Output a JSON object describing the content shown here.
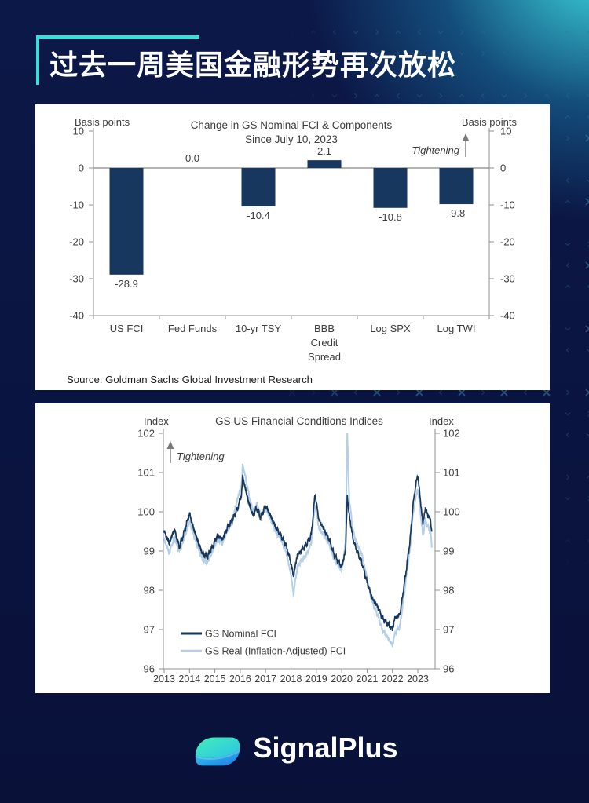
{
  "header": {
    "title": "过去一周美国金融形势再次放松"
  },
  "brand": {
    "name": "SignalPlus"
  },
  "colors": {
    "background": "#0a123c",
    "accent_teal": "#35e0d6",
    "bar": "#17375e",
    "line_nominal": "#16365c",
    "line_real": "#b5cfe8",
    "glow": "#40e4e8",
    "axis_gray": "#8f8f8f",
    "chart_text": "#3c3c3c"
  },
  "chart_data": [
    {
      "type": "bar",
      "title": "Change in GS Nominal FCI & Components",
      "subtitle": "Since July 10, 2023",
      "left_axis_label": "Basis points",
      "right_axis_label": "Basis points",
      "annotation": "Tightening",
      "categories": [
        "US FCI",
        "Fed Funds",
        "10-yr TSY",
        "BBB Credit Spread",
        "Log SPX",
        "Log TWI"
      ],
      "category_lines": [
        [
          "US FCI"
        ],
        [
          "Fed Funds"
        ],
        [
          "10-yr TSY"
        ],
        [
          "BBB",
          "Credit",
          "Spread"
        ],
        [
          "Log SPX"
        ],
        [
          "Log TWI"
        ]
      ],
      "values": [
        -28.9,
        0.0,
        -10.4,
        2.1,
        -10.8,
        -9.8
      ],
      "value_labels": [
        "-28.9",
        "0.0",
        "-10.4",
        "2.1",
        "-10.8",
        "-9.8"
      ],
      "ylim": [
        -40,
        10
      ],
      "yticks": [
        10,
        0,
        -10,
        -20,
        -30,
        -40
      ],
      "grid": false,
      "source": "Source: Goldman Sachs Global Investment Research"
    },
    {
      "type": "line",
      "title": "GS US Financial Conditions Indices",
      "left_axis_label": "Index",
      "right_axis_label": "Index",
      "annotation": "Tightening",
      "ylim": [
        96,
        102
      ],
      "yticks": [
        96,
        97,
        98,
        99,
        100,
        101,
        102
      ],
      "xticks": [
        2013,
        2014,
        2015,
        2016,
        2017,
        2018,
        2019,
        2020,
        2021,
        2022,
        2023
      ],
      "x_range": [
        2013.0,
        2023.55
      ],
      "grid": false,
      "legend_position": "inside-bottom-left",
      "legend": [
        {
          "name": "GS Nominal FCI",
          "color": "#16365c"
        },
        {
          "name": "GS Real (Inflation-Adjusted) FCI",
          "color": "#b5cfe8"
        }
      ],
      "x": [
        2013.0,
        2013.2,
        2013.4,
        2013.6,
        2013.8,
        2014.0,
        2014.15,
        2014.3,
        2014.5,
        2014.7,
        2014.9,
        2015.1,
        2015.3,
        2015.5,
        2015.7,
        2015.9,
        2016.05,
        2016.1,
        2016.2,
        2016.35,
        2016.5,
        2016.65,
        2016.8,
        2017.0,
        2017.2,
        2017.4,
        2017.6,
        2017.8,
        2018.0,
        2018.1,
        2018.25,
        2018.4,
        2018.6,
        2018.8,
        2018.95,
        2019.1,
        2019.3,
        2019.5,
        2019.7,
        2019.9,
        2020.0,
        2020.15,
        2020.22,
        2020.3,
        2020.45,
        2020.6,
        2020.8,
        2021.0,
        2021.2,
        2021.4,
        2021.6,
        2021.8,
        2022.0,
        2022.1,
        2022.3,
        2022.5,
        2022.7,
        2022.8,
        2022.9,
        2023.0,
        2023.1,
        2023.2,
        2023.3,
        2023.4,
        2023.5,
        2023.55
      ],
      "series": [
        {
          "name": "GS Nominal FCI",
          "color": "#16365c",
          "values": [
            99.5,
            99.2,
            99.55,
            99.1,
            99.5,
            99.95,
            99.6,
            99.3,
            98.95,
            98.85,
            99.1,
            99.4,
            99.3,
            99.6,
            99.8,
            100.1,
            100.45,
            100.9,
            100.6,
            100.2,
            99.9,
            100.1,
            99.85,
            100.15,
            99.9,
            99.6,
            99.4,
            99.15,
            98.7,
            98.35,
            98.9,
            99.0,
            99.15,
            99.4,
            100.45,
            99.8,
            99.55,
            99.3,
            98.9,
            98.7,
            98.6,
            99.0,
            100.4,
            99.9,
            99.3,
            99.0,
            98.7,
            98.2,
            97.8,
            97.6,
            97.3,
            97.15,
            97.0,
            97.3,
            97.4,
            98.3,
            99.3,
            100.1,
            100.6,
            100.95,
            100.3,
            99.7,
            100.1,
            99.9,
            99.8,
            99.5
          ]
        },
        {
          "name": "GS Real (Inflation-Adjusted) FCI",
          "color": "#b5cfe8",
          "values": [
            99.3,
            98.95,
            99.35,
            99.0,
            99.35,
            99.75,
            99.45,
            99.15,
            98.8,
            98.7,
            99.0,
            99.3,
            99.2,
            99.55,
            99.8,
            100.35,
            100.7,
            101.2,
            100.9,
            100.4,
            100.0,
            100.2,
            99.9,
            100.1,
            99.8,
            99.5,
            99.3,
            99.0,
            98.4,
            97.9,
            98.6,
            98.75,
            98.9,
            99.2,
            100.2,
            99.6,
            99.4,
            99.2,
            98.8,
            98.6,
            98.5,
            99.2,
            102.0,
            100.3,
            99.5,
            99.2,
            98.9,
            98.3,
            97.7,
            97.4,
            97.0,
            96.8,
            96.6,
            96.9,
            97.1,
            98.1,
            99.1,
            99.9,
            100.3,
            100.6,
            100.0,
            99.4,
            99.8,
            99.6,
            99.5,
            99.1
          ]
        }
      ]
    }
  ]
}
